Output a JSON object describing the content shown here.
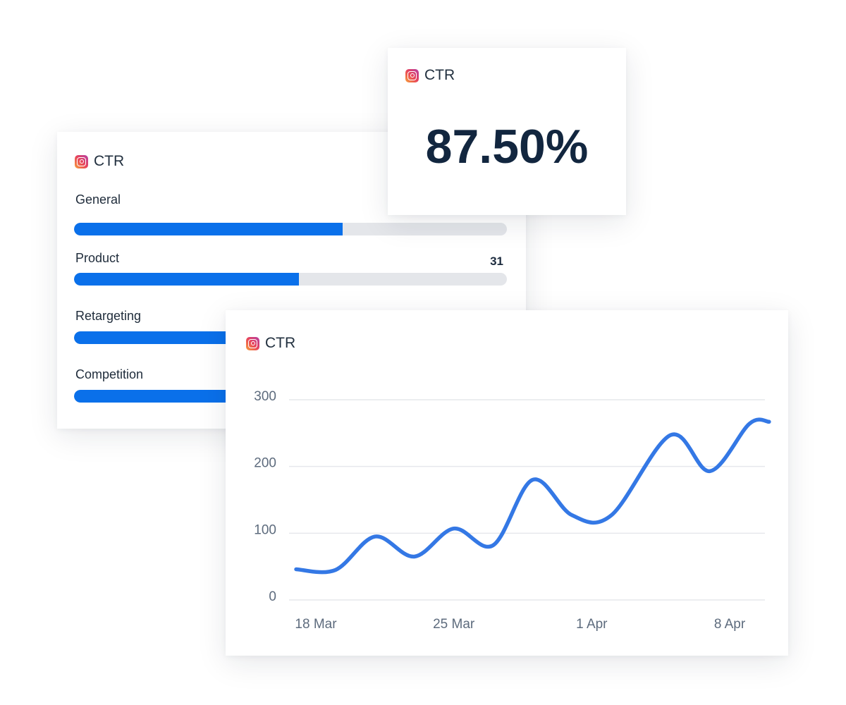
{
  "bar_card": {
    "title": "CTR",
    "icon": "instagram-icon",
    "items": [
      {
        "label": "General",
        "fill": 0.62
      },
      {
        "label": "Product",
        "value": "31",
        "fill": 0.52
      },
      {
        "label": "Retargeting"
      },
      {
        "label": "Competition"
      }
    ],
    "bar_color": "#0a70ea"
  },
  "kpi_card": {
    "title": "CTR",
    "icon": "instagram-icon",
    "value": "87.50%"
  },
  "line_card": {
    "title": "CTR",
    "icon": "instagram-icon"
  },
  "chart_data": {
    "type": "line",
    "color": "#3478e5",
    "ylim": [
      0,
      300
    ],
    "yticks": [
      "0",
      "100",
      "200",
      "300"
    ],
    "xtick_labels": [
      "18 Mar",
      "25 Mar",
      "1 Apr",
      "8 Apr"
    ],
    "grid": true,
    "x": [
      "17 Mar",
      "19 Mar",
      "21 Mar",
      "23 Mar",
      "25 Mar",
      "27 Mar",
      "29 Mar",
      "31 Mar",
      "2 Apr",
      "5 Apr",
      "7 Apr",
      "9 Apr",
      "10 Apr"
    ],
    "values": [
      46,
      45,
      95,
      65,
      107,
      82,
      180,
      127,
      127,
      247,
      193,
      264,
      267
    ]
  }
}
